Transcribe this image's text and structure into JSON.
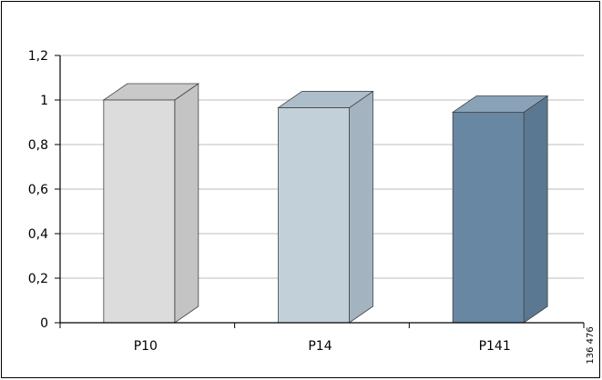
{
  "chart_data": {
    "type": "bar",
    "categories": [
      "P10",
      "P14",
      "P141"
    ],
    "values": [
      1.0,
      0.965,
      0.945
    ],
    "ylim": [
      0,
      1.2
    ],
    "yticks": [
      "0",
      "0,2",
      "0,4",
      "0,6",
      "0,8",
      "1",
      "1,2"
    ],
    "grid": true,
    "bar_colors": [
      {
        "front": "#dcdcdc",
        "top": "#c9c9c9",
        "side": "#c4c4c4"
      },
      {
        "front": "#c2d0da",
        "top": "#aebdca",
        "side": "#a4b3c0"
      },
      {
        "front": "#6787a3",
        "top": "#8aa2b8",
        "side": "#5a7891"
      }
    ]
  },
  "figure_id": "136 476"
}
